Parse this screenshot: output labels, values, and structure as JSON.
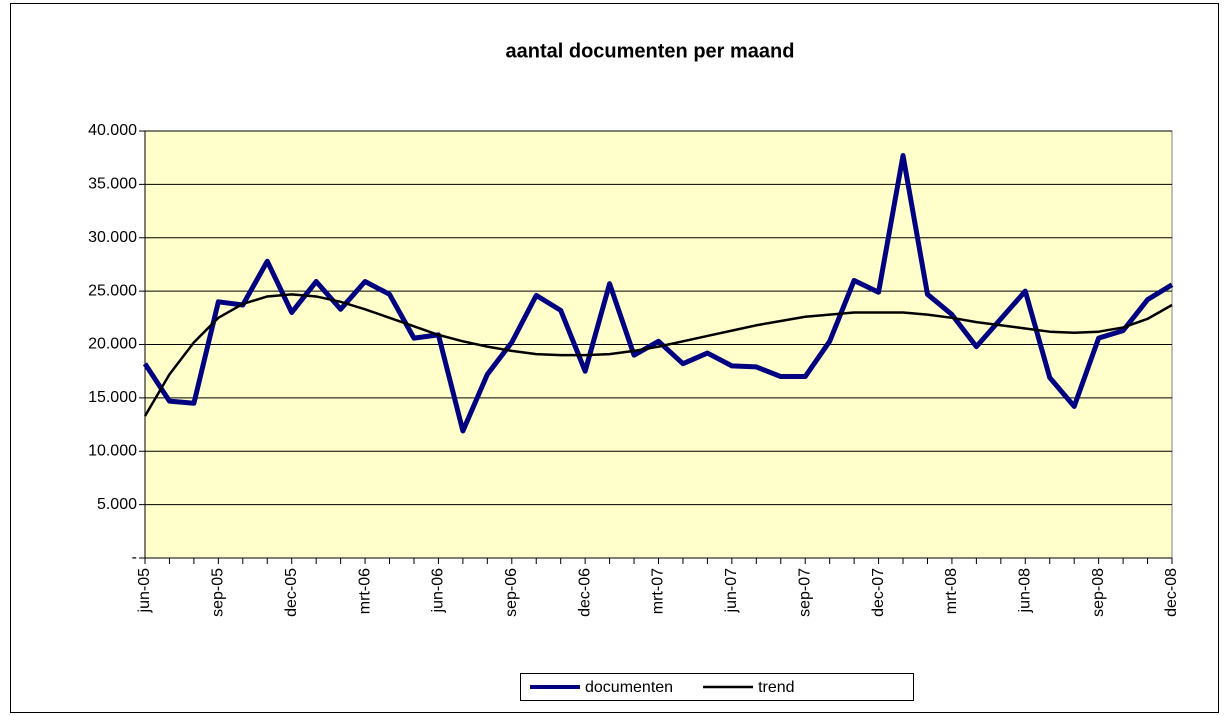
{
  "chart_data": {
    "type": "line",
    "title": "aantal documenten per maand",
    "categories": [
      "jun-05",
      null,
      null,
      "sep-05",
      null,
      null,
      "dec-05",
      null,
      null,
      "mrt-06",
      null,
      null,
      "jun-06",
      null,
      null,
      "sep-06",
      null,
      null,
      "dec-06",
      null,
      null,
      "mrt-07",
      null,
      null,
      "jun-07",
      null,
      null,
      "sep-07",
      null,
      null,
      "dec-07",
      null,
      null,
      "mrt-08",
      null,
      null,
      "jun-08",
      null,
      null,
      "sep-08",
      null,
      null,
      "dec-08"
    ],
    "series": [
      {
        "name": "documenten",
        "color": "#000080",
        "values": [
          18200,
          14700,
          14500,
          24000,
          23700,
          27800,
          23000,
          25900,
          23300,
          25900,
          24700,
          20600,
          20900,
          11900,
          17200,
          20200,
          24600,
          23200,
          17500,
          25700,
          19000,
          20300,
          18200,
          19200,
          18000,
          17900,
          17000,
          17000,
          20300,
          26000,
          24900,
          37700,
          24700,
          22800,
          19800,
          22400,
          25000,
          16900,
          14200,
          20600,
          21300,
          24200,
          25600
        ]
      },
      {
        "name": "trend",
        "color": "#000000",
        "values": [
          13300,
          17200,
          20200,
          22500,
          23800,
          24500,
          24700,
          24500,
          24000,
          23300,
          22500,
          21700,
          20900,
          20300,
          19800,
          19400,
          19100,
          19000,
          19000,
          19100,
          19400,
          19800,
          20300,
          20800,
          21300,
          21800,
          22200,
          22600,
          22800,
          23000,
          23000,
          23000,
          22800,
          22500,
          22100,
          21800,
          21500,
          21200,
          21100,
          21200,
          21600,
          22400,
          23700
        ]
      }
    ],
    "ylim": [
      0,
      40000
    ],
    "yticks": [
      {
        "value": 0,
        "label": "-"
      },
      {
        "value": 5000,
        "label": "5.000"
      },
      {
        "value": 10000,
        "label": "10.000"
      },
      {
        "value": 15000,
        "label": "15.000"
      },
      {
        "value": 20000,
        "label": "20.000"
      },
      {
        "value": 25000,
        "label": "25.000"
      },
      {
        "value": 30000,
        "label": "30.000"
      },
      {
        "value": 35000,
        "label": "35.000"
      },
      {
        "value": 40000,
        "label": "40.000"
      }
    ],
    "grid": true,
    "legend": "bottom",
    "plot_background": "#ffffcc"
  }
}
